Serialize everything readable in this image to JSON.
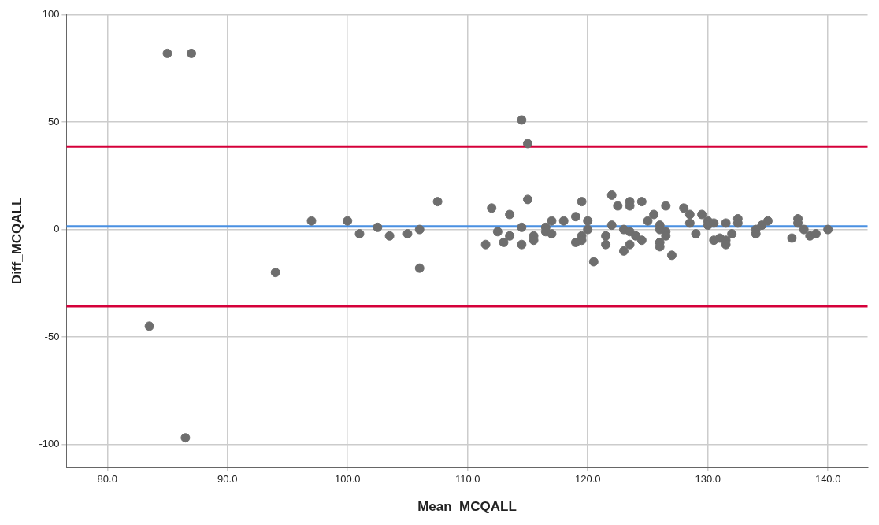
{
  "chart_data": {
    "type": "scatter",
    "xlabel": "Mean_MCQALL",
    "ylabel": "Diff_MCQALL",
    "x": [
      85,
      87,
      83.5,
      86.5,
      94,
      97,
      100,
      101,
      102.5,
      103.5,
      105,
      106,
      106,
      107.5,
      111.5,
      112,
      112.5,
      113,
      113.5,
      113.5,
      114.5,
      114.5,
      114.5,
      115,
      115,
      115.5,
      115.5,
      116.5,
      116.5,
      117,
      117,
      118,
      119,
      119,
      119.5,
      119.5,
      119.5,
      120,
      120,
      120.5,
      121.5,
      121.5,
      122,
      122,
      122.5,
      123,
      123,
      123.5,
      123.5,
      123.5,
      123.5,
      124,
      124.5,
      124.5,
      125,
      125.5,
      126,
      126,
      126,
      126,
      126.5,
      126.5,
      126.5,
      127,
      128,
      128.5,
      128.5,
      129,
      129.5,
      130,
      130,
      130.5,
      130.5,
      131,
      131.5,
      131.5,
      131.5,
      132,
      132.5,
      132.5,
      134,
      134,
      134.5,
      135,
      137,
      137.5,
      137.5,
      138,
      138.5,
      139,
      140
    ],
    "series": [
      {
        "color": "#6e6e6e",
        "values": [
          82,
          82,
          -45,
          -97,
          -20,
          4,
          4,
          -2,
          1,
          -3,
          -2,
          0,
          -18,
          13,
          -7,
          10,
          -1,
          -6,
          7,
          -3,
          51,
          1,
          -7,
          40,
          14,
          -3,
          -5,
          1,
          -1,
          4,
          -2,
          4,
          6,
          -6,
          13,
          -3,
          -5,
          4,
          0,
          -15,
          -3,
          -7,
          16,
          2,
          11,
          0,
          -10,
          13,
          11,
          -1,
          -7,
          -3,
          13,
          -5,
          4,
          7,
          2,
          0,
          -6,
          -8,
          11,
          -1,
          -3,
          -12,
          10,
          7,
          3,
          -2,
          7,
          4,
          2,
          3,
          -5,
          -4,
          3,
          -5,
          -7,
          -2,
          5,
          3,
          0,
          -2,
          2,
          4,
          -4,
          5,
          3,
          0,
          -3,
          -2,
          0
        ]
      }
    ],
    "marker": "circle",
    "xlim": [
      76.6,
      143.3
    ],
    "ylim": [
      -110.5,
      100
    ],
    "xticks": [
      {
        "value": 80,
        "label": "80.0"
      },
      {
        "value": 90,
        "label": "90.0"
      },
      {
        "value": 100,
        "label": "100.0"
      },
      {
        "value": 110,
        "label": "110.0"
      },
      {
        "value": 120,
        "label": "120.0"
      },
      {
        "value": 130,
        "label": "130.0"
      },
      {
        "value": 140,
        "label": "140.0"
      }
    ],
    "yticks": [
      -100,
      -50,
      0,
      50,
      100
    ],
    "grid": true,
    "legend": false,
    "ref_lines": [
      {
        "axis": "y",
        "value": 38.6,
        "color": "#d5003a"
      },
      {
        "axis": "y",
        "value": 1.4,
        "color": "#4a90e2"
      },
      {
        "axis": "y",
        "value": -35.7,
        "color": "#d5003a"
      }
    ]
  }
}
